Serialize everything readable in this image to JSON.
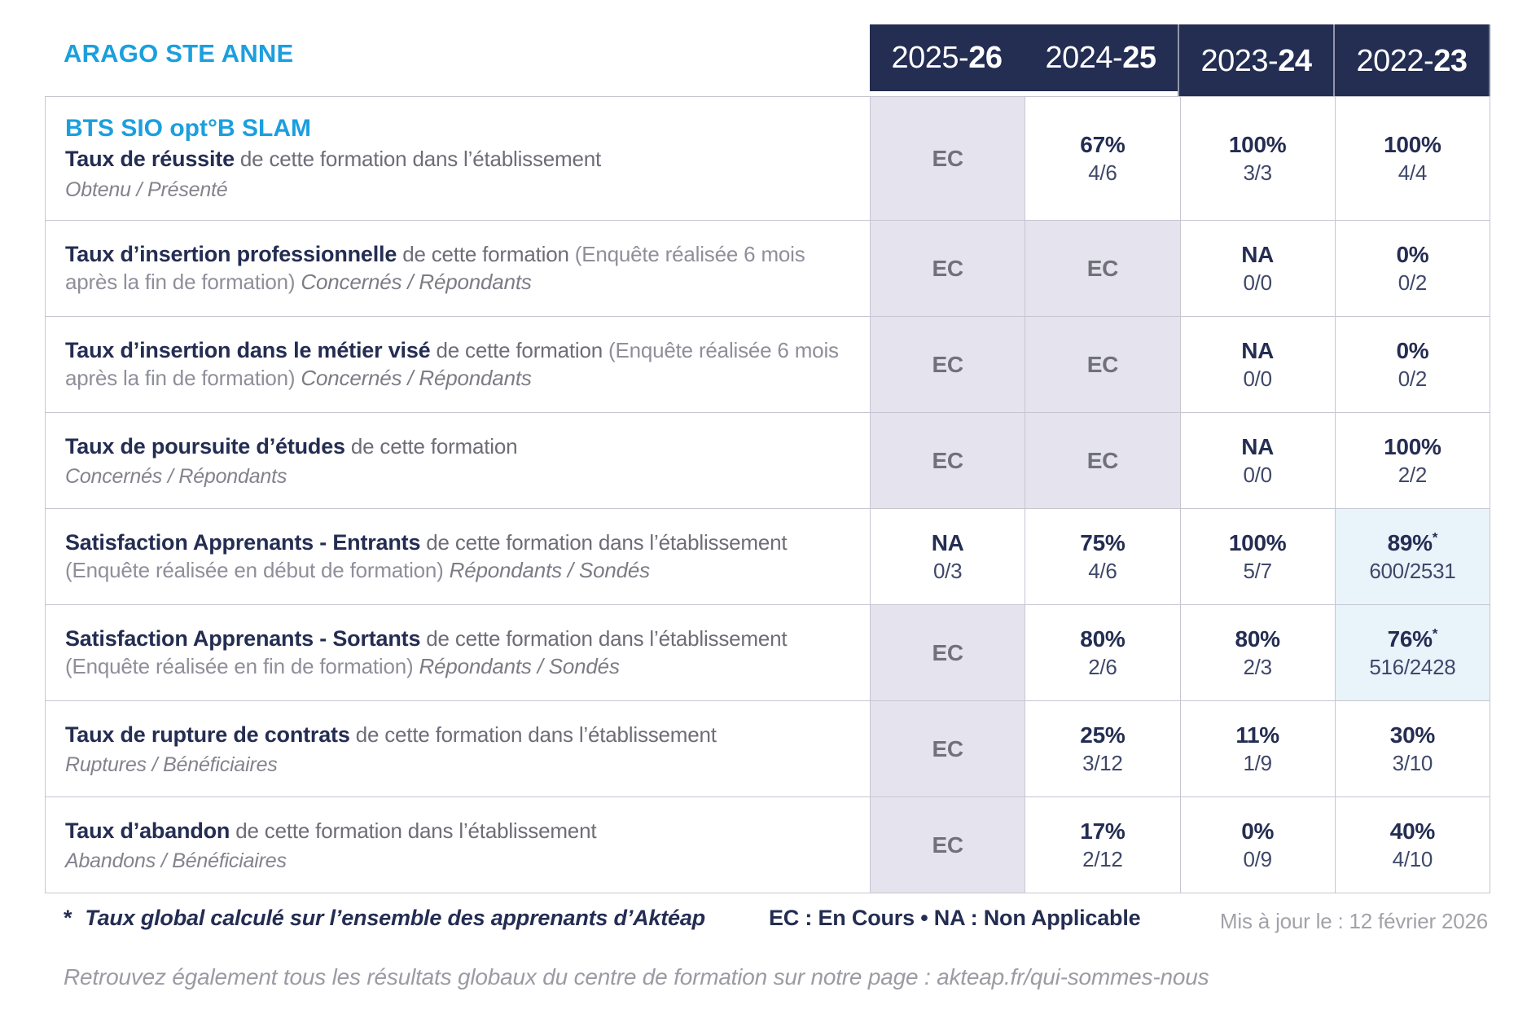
{
  "header": {
    "org_name": "ARAGO STE ANNE",
    "year_columns": [
      {
        "prefix": "2025-",
        "suffix": "26"
      },
      {
        "prefix": "2024-",
        "suffix": "25"
      },
      {
        "prefix": "2023-",
        "suffix": "24"
      },
      {
        "prefix": "2022-",
        "suffix": "23"
      }
    ]
  },
  "program_title": "BTS SIO opt°B SLAM",
  "rows": [
    {
      "segments": [
        {
          "t": "Taux de réussite",
          "s": "b"
        },
        {
          "t": " de cette formation dans l’établissement",
          "s": "g"
        }
      ],
      "subtitle": "Obtenu / Présenté",
      "values": [
        {
          "main": "EC",
          "sub": "",
          "bg": "lav",
          "tone": "gray",
          "star": false
        },
        {
          "main": "67%",
          "sub": "4/6",
          "bg": "white",
          "tone": "navy",
          "star": false
        },
        {
          "main": "100%",
          "sub": "3/3",
          "bg": "white",
          "tone": "navy",
          "star": false
        },
        {
          "main": "100%",
          "sub": "4/4",
          "bg": "white",
          "tone": "navy",
          "star": false
        }
      ]
    },
    {
      "segments": [
        {
          "t": "Taux d’insertion professionnelle",
          "s": "b"
        },
        {
          "t": " de cette formation ",
          "s": "g"
        },
        {
          "t": "(Enquête réalisée 6 mois après la fin de formation) ",
          "s": "p"
        },
        {
          "t": "Concernés / Répondants",
          "s": "i"
        }
      ],
      "subtitle": null,
      "values": [
        {
          "main": "EC",
          "sub": "",
          "bg": "lav",
          "tone": "gray",
          "star": false
        },
        {
          "main": "EC",
          "sub": "",
          "bg": "lav",
          "tone": "gray",
          "star": false
        },
        {
          "main": "NA",
          "sub": "0/0",
          "bg": "white",
          "tone": "navy",
          "star": false
        },
        {
          "main": "0%",
          "sub": "0/2",
          "bg": "white",
          "tone": "navy",
          "star": false
        }
      ]
    },
    {
      "segments": [
        {
          "t": "Taux d’insertion dans le métier visé",
          "s": "b"
        },
        {
          "t": " de cette formation ",
          "s": "g"
        },
        {
          "t": "(Enquête réalisée 6 mois après la fin de formation) ",
          "s": "p"
        },
        {
          "t": "Concernés / Répondants",
          "s": "i"
        }
      ],
      "subtitle": null,
      "values": [
        {
          "main": "EC",
          "sub": "",
          "bg": "lav",
          "tone": "gray",
          "star": false
        },
        {
          "main": "EC",
          "sub": "",
          "bg": "lav",
          "tone": "gray",
          "star": false
        },
        {
          "main": "NA",
          "sub": "0/0",
          "bg": "white",
          "tone": "navy",
          "star": false
        },
        {
          "main": "0%",
          "sub": "0/2",
          "bg": "white",
          "tone": "navy",
          "star": false
        }
      ]
    },
    {
      "segments": [
        {
          "t": "Taux de poursuite d’études",
          "s": "b"
        },
        {
          "t": " de cette formation",
          "s": "g"
        }
      ],
      "subtitle": "Concernés / Répondants",
      "values": [
        {
          "main": "EC",
          "sub": "",
          "bg": "lav",
          "tone": "gray",
          "star": false
        },
        {
          "main": "EC",
          "sub": "",
          "bg": "lav",
          "tone": "gray",
          "star": false
        },
        {
          "main": "NA",
          "sub": "0/0",
          "bg": "white",
          "tone": "navy",
          "star": false
        },
        {
          "main": "100%",
          "sub": "2/2",
          "bg": "white",
          "tone": "navy",
          "star": false
        }
      ]
    },
    {
      "segments": [
        {
          "t": "Satisfaction Apprenants - Entrants",
          "s": "b"
        },
        {
          "t": " de cette formation dans l’établissement ",
          "s": "g"
        },
        {
          "t": "(Enquête réalisée en début de formation) ",
          "s": "p"
        },
        {
          "t": "Répondants / Sondés",
          "s": "i"
        }
      ],
      "subtitle": null,
      "values": [
        {
          "main": "NA",
          "sub": "0/3",
          "bg": "white",
          "tone": "navy",
          "star": false
        },
        {
          "main": "75%",
          "sub": "4/6",
          "bg": "white",
          "tone": "navy",
          "star": false
        },
        {
          "main": "100%",
          "sub": "5/7",
          "bg": "white",
          "tone": "navy",
          "star": false
        },
        {
          "main": "89%",
          "sub": "600/2531",
          "bg": "blue",
          "tone": "navy",
          "star": true
        }
      ]
    },
    {
      "segments": [
        {
          "t": "Satisfaction Apprenants - Sortants",
          "s": "b"
        },
        {
          "t": " de cette formation dans l’établissement ",
          "s": "g"
        },
        {
          "t": "(Enquête réalisée en fin de formation) ",
          "s": "p"
        },
        {
          "t": "Répondants / Sondés",
          "s": "i"
        }
      ],
      "subtitle": null,
      "values": [
        {
          "main": "EC",
          "sub": "",
          "bg": "lav",
          "tone": "gray",
          "star": false
        },
        {
          "main": "80%",
          "sub": "2/6",
          "bg": "white",
          "tone": "navy",
          "star": false
        },
        {
          "main": "80%",
          "sub": "2/3",
          "bg": "white",
          "tone": "navy",
          "star": false
        },
        {
          "main": "76%",
          "sub": "516/2428",
          "bg": "blue",
          "tone": "navy",
          "star": true
        }
      ]
    },
    {
      "segments": [
        {
          "t": "Taux de rupture de contrats",
          "s": "b"
        },
        {
          "t": " de cette formation dans l’établissement",
          "s": "g"
        }
      ],
      "subtitle": "Ruptures / Bénéficiaires",
      "values": [
        {
          "main": "EC",
          "sub": "",
          "bg": "lav",
          "tone": "gray",
          "star": false
        },
        {
          "main": "25%",
          "sub": "3/12",
          "bg": "white",
          "tone": "navy",
          "star": false
        },
        {
          "main": "11%",
          "sub": "1/9",
          "bg": "white",
          "tone": "navy",
          "star": false
        },
        {
          "main": "30%",
          "sub": "3/10",
          "bg": "white",
          "tone": "navy",
          "star": false
        }
      ]
    },
    {
      "segments": [
        {
          "t": "Taux d’abandon",
          "s": "b"
        },
        {
          "t": " de cette formation dans l’établissement",
          "s": "g"
        }
      ],
      "subtitle": "Abandons / Bénéficiaires",
      "values": [
        {
          "main": "EC",
          "sub": "",
          "bg": "lav",
          "tone": "gray",
          "star": false
        },
        {
          "main": "17%",
          "sub": "2/12",
          "bg": "white",
          "tone": "navy",
          "star": false
        },
        {
          "main": "0%",
          "sub": "0/9",
          "bg": "white",
          "tone": "navy",
          "star": false
        },
        {
          "main": "40%",
          "sub": "4/10",
          "bg": "white",
          "tone": "navy",
          "star": false
        }
      ]
    }
  ],
  "footer": {
    "star": "*",
    "footnote": "Taux global calculé sur l’ensemble des apprenants d’Aktéap",
    "legend": "EC : En Cours  •  NA : Non Applicable",
    "updated": "Mis à jour le : 12 février 2026",
    "bottom_note": "Retrouvez également tous les résultats globaux du centre de formation sur notre page : akteap.fr/qui-sommes-nous"
  },
  "colors": {
    "accent_blue": "#1b9fde",
    "navy": "#242d52",
    "lavender_cell": "#e5e4ee",
    "lightblue_cell": "#e9f3fa",
    "border": "#c6c6d2"
  }
}
